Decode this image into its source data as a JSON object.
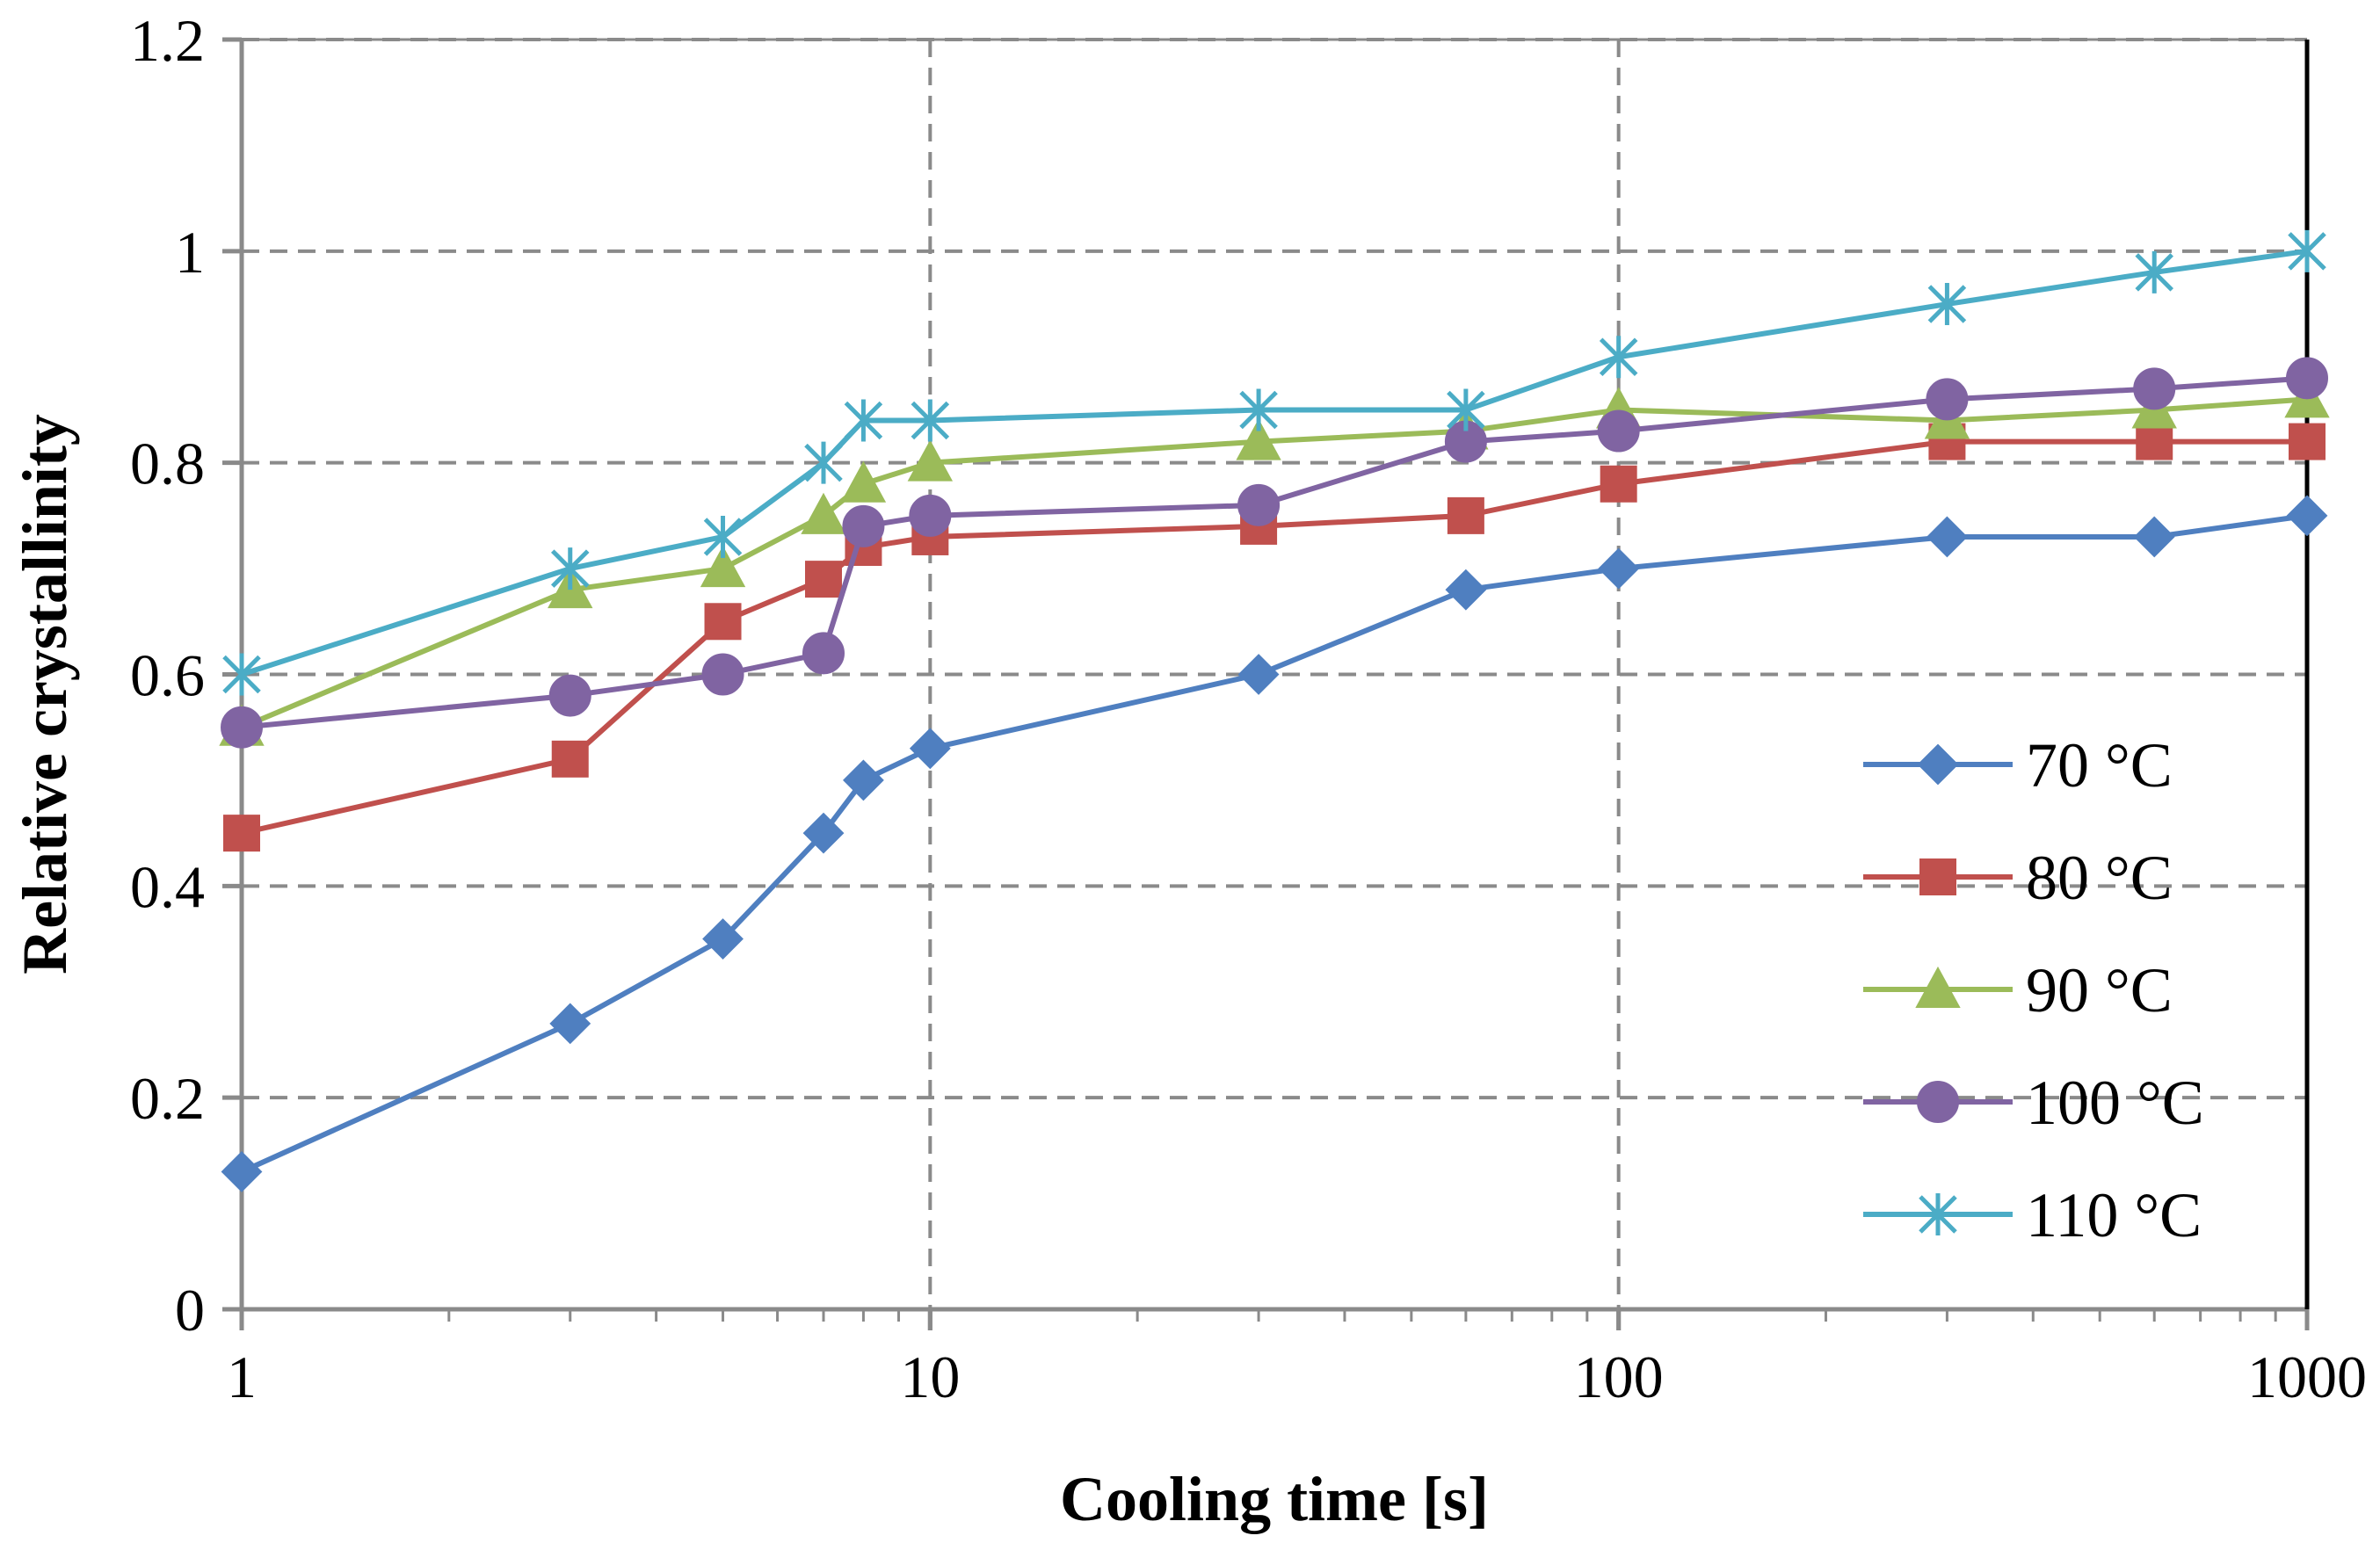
{
  "chart_data": {
    "type": "line",
    "x_scale": "log",
    "xlabel": "Cooling time [s]",
    "ylabel": "Relative crystallinity",
    "xlim": [
      1,
      1000
    ],
    "ylim": [
      0,
      1.2
    ],
    "x_ticks": [
      1,
      10,
      100,
      1000
    ],
    "x_tick_labels": [
      "1",
      "10",
      "100",
      "1000"
    ],
    "y_ticks": [
      0,
      0.2,
      0.4,
      0.6,
      0.8,
      1,
      1.2
    ],
    "y_tick_labels": [
      "0",
      "0.2",
      "0.4",
      "0.6",
      "0.8",
      "1",
      "1.2"
    ],
    "grid": "dashed",
    "legend_position": "right",
    "series": [
      {
        "name": "70 °C",
        "color": "#4f7fc0",
        "marker": "diamond",
        "x": [
          1,
          3,
          5,
          7,
          8,
          10,
          30,
          60,
          100,
          300,
          600,
          1000
        ],
        "values": [
          0.13,
          0.27,
          0.35,
          0.45,
          0.5,
          0.53,
          0.6,
          0.68,
          0.7,
          0.73,
          0.73,
          0.75
        ]
      },
      {
        "name": "80 °C",
        "color": "#c0504d",
        "marker": "square",
        "x": [
          1,
          3,
          5,
          7,
          8,
          10,
          30,
          60,
          100,
          300,
          600,
          1000
        ],
        "values": [
          0.45,
          0.52,
          0.65,
          0.69,
          0.72,
          0.73,
          0.74,
          0.75,
          0.78,
          0.82,
          0.82,
          0.82
        ]
      },
      {
        "name": "90 °C",
        "color": "#9bbb59",
        "marker": "triangle",
        "x": [
          1,
          3,
          5,
          7,
          8,
          10,
          30,
          60,
          100,
          300,
          600,
          1000
        ],
        "values": [
          0.55,
          0.68,
          0.7,
          0.75,
          0.78,
          0.8,
          0.82,
          0.83,
          0.85,
          0.84,
          0.85,
          0.86
        ]
      },
      {
        "name": "100 °C",
        "color": "#8064a2",
        "marker": "circle",
        "x": [
          1,
          3,
          5,
          7,
          8,
          10,
          30,
          60,
          100,
          300,
          600,
          1000
        ],
        "values": [
          0.55,
          0.58,
          0.6,
          0.62,
          0.74,
          0.75,
          0.76,
          0.82,
          0.83,
          0.86,
          0.87,
          0.88
        ]
      },
      {
        "name": "110 °C",
        "color": "#4bacc6",
        "marker": "star",
        "x": [
          1,
          3,
          5,
          7,
          8,
          10,
          30,
          60,
          100,
          300,
          600,
          1000
        ],
        "values": [
          0.6,
          0.7,
          0.73,
          0.8,
          0.84,
          0.84,
          0.85,
          0.85,
          0.9,
          0.95,
          0.98,
          1.0
        ]
      }
    ]
  }
}
